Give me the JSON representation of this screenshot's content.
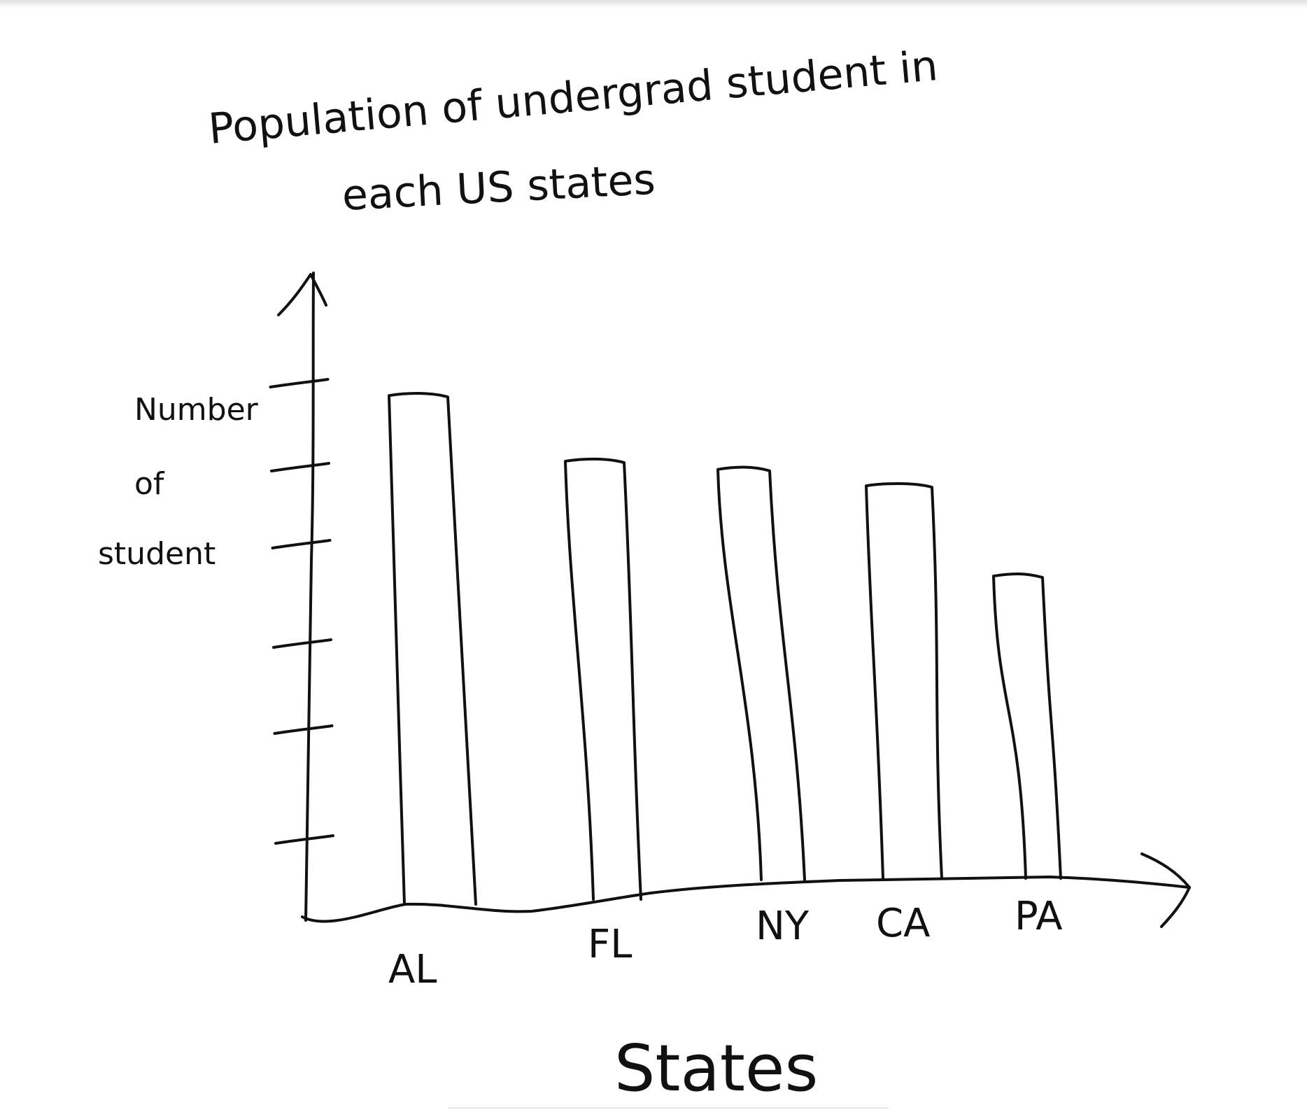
{
  "chart_data": {
    "type": "bar",
    "title": "Population of undergrad student in each US states",
    "xlabel": "States",
    "ylabel": "Number of student",
    "categories": [
      "AL",
      "FL",
      "NY",
      "CA",
      "PA"
    ],
    "values": [
      6.2,
      5.4,
      5.3,
      5.1,
      4.0
    ],
    "ylim": [
      0,
      6.5
    ],
    "y_ticks": 6,
    "y_tick_labels_shown": false,
    "legend": "none",
    "grid": false,
    "style": "hand-drawn sketch",
    "colors": {
      "ink": "#111111",
      "background": "#ffffff"
    }
  }
}
